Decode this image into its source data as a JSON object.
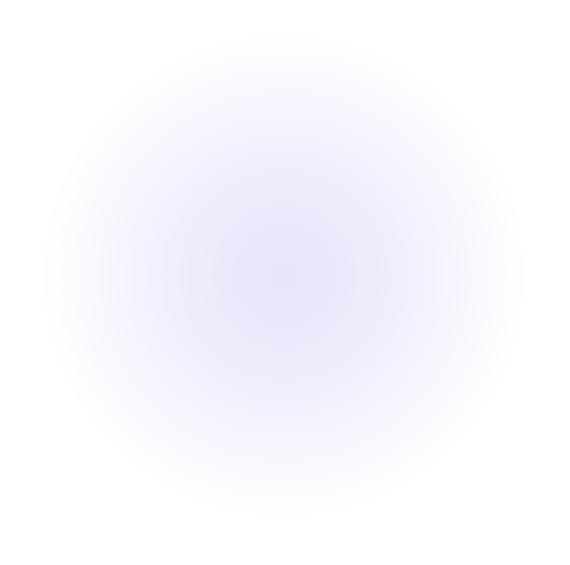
{
  "background": {
    "base_color": "#ffffff",
    "glow_color": "#e8e4fa"
  }
}
